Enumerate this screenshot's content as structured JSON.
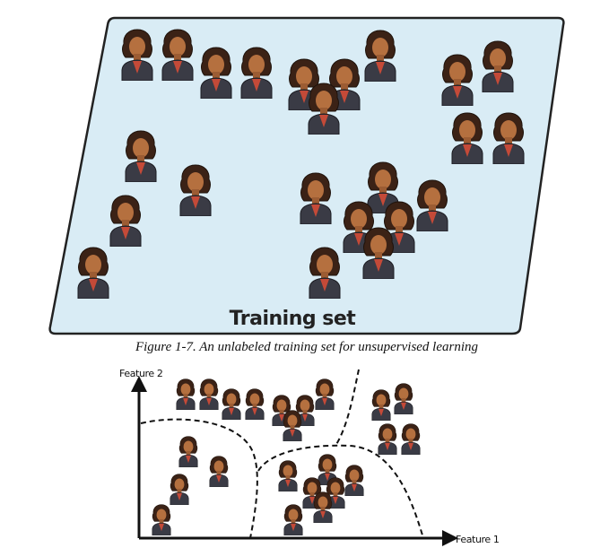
{
  "figure": {
    "label": "Training set",
    "caption": "Figure 1-7. An unlabeled training set for unsupervised learning",
    "y_axis": "Feature 2",
    "x_axis": "Feature 1"
  }
}
